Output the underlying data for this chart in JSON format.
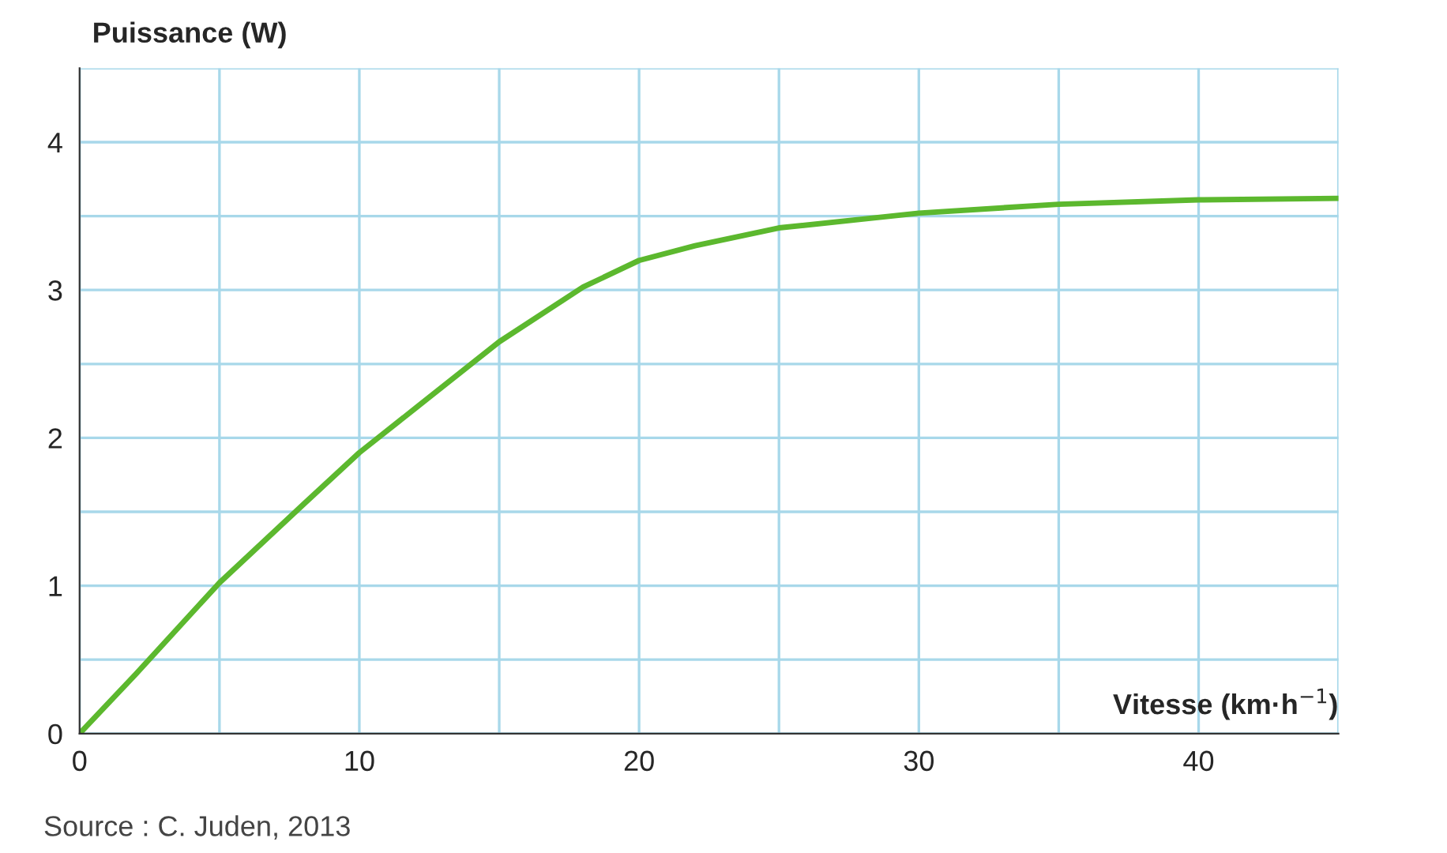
{
  "chart_data": {
    "type": "line",
    "xlabel": "Vitesse (km·h$^{−1}$)",
    "ylabel": "Puissance (W)",
    "x": [
      0,
      2,
      5,
      8,
      10,
      12,
      15,
      18,
      20,
      22,
      25,
      28,
      30,
      35,
      40,
      45
    ],
    "series": [
      {
        "color": "#5cb82e",
        "values": [
          0,
          0.4,
          1.02,
          1.55,
          1.9,
          2.2,
          2.65,
          3.02,
          3.2,
          3.3,
          3.42,
          3.48,
          3.52,
          3.58,
          3.61,
          3.62
        ]
      }
    ],
    "xlim": [
      0,
      45
    ],
    "ylim": [
      0,
      4.5
    ],
    "xticks": [
      0,
      {
        "value": 5,
        "label": null
      },
      10,
      {
        "value": 15,
        "label": null
      },
      20,
      {
        "value": 25,
        "label": null
      },
      30,
      {
        "value": 35,
        "label": null
      },
      40,
      {
        "value": 45,
        "label": null
      }
    ],
    "yticks": [
      0,
      {
        "value": 0.5,
        "label": null
      },
      1,
      {
        "value": 1.5,
        "label": null
      },
      2,
      {
        "value": 2.5,
        "label": null
      },
      3,
      {
        "value": 3.5,
        "label": null
      },
      4,
      {
        "value": 4.5,
        "label": null
      }
    ],
    "grid": true,
    "marker": "none",
    "line_style": "solid",
    "annotations": [
      "Source : C. Juden, 2013"
    ]
  }
}
